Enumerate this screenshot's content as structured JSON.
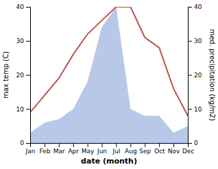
{
  "chart_data": {
    "type": "line",
    "xlabel": "date (month)",
    "ylabel": "max temp (C)",
    "y2label": "med. precipitation (kg/m2)",
    "categories": [
      "Jan",
      "Feb",
      "Mar",
      "Apr",
      "May",
      "Jun",
      "Jul",
      "Aug",
      "Sep",
      "Oct",
      "Nov",
      "Dec"
    ],
    "series": [
      {
        "type": "area",
        "axis": "y2",
        "color": "#b8c8e8",
        "values": [
          3,
          6,
          7,
          10,
          18,
          34,
          40,
          10,
          8,
          8,
          3,
          5
        ]
      },
      {
        "type": "line",
        "color": "#c0504d",
        "values": [
          9,
          14,
          19,
          26,
          32,
          36,
          40,
          40,
          31,
          28,
          16,
          8
        ]
      }
    ],
    "ylim": [
      0,
      40
    ],
    "yticks": [
      0,
      10,
      20,
      30,
      40
    ],
    "y2lim": [
      0,
      40
    ],
    "y2ticks": [
      0,
      10,
      20,
      30,
      40
    ],
    "grid": false
  }
}
